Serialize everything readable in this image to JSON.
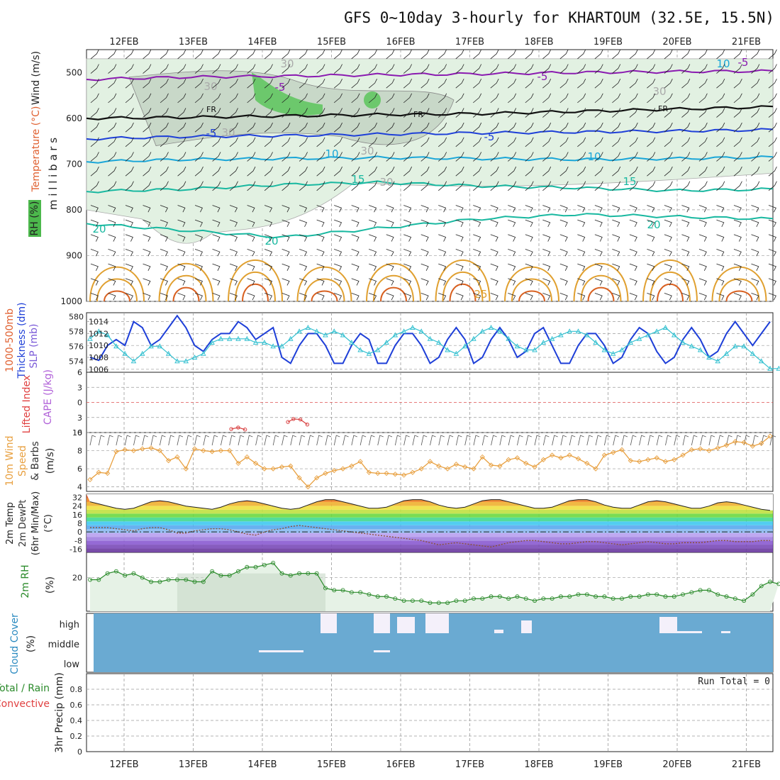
{
  "title": "GFS 0~10day 3-hourly for KHARTOUM (32.5E, 15.5N)",
  "dates": [
    "12FEB",
    "13FEB",
    "14FEB",
    "15FEB",
    "16FEB",
    "17FEB",
    "18FEB",
    "19FEB",
    "20FEB",
    "21FEB"
  ],
  "colors": {
    "grid": "#9a9a9a",
    "temp_blue": "#1e3fd8",
    "temp_cyan": "#1aa6d8",
    "temp_teal": "#18b8a0",
    "temp_orange": "#e0a030",
    "temp_purple": "#8a1ab0",
    "rh_green": "#6cc86c",
    "slp_blue": "#1e3fd8",
    "thick_cyan": "#33c0d0",
    "wind_orange": "#e8a040",
    "rh_dark": "#2a8a2a",
    "cloud": "#6aaad2",
    "cape_red": "#d84040"
  },
  "chart_data": [
    {
      "type": "heatmap",
      "panel": "upper_air",
      "ylabels": [
        "Wind (m/s)",
        "Temperature (°C)",
        "RH (%)",
        "m i l l i b a r s"
      ],
      "yticks": [
        500,
        600,
        700,
        800,
        900,
        1000
      ],
      "ylim": [
        1000,
        450
      ],
      "contour_labels": [
        "-5",
        "-5",
        "-5",
        "FR",
        "FR",
        "FR",
        "-5",
        "-5",
        "10",
        "10",
        "15",
        "15",
        "20",
        "20",
        "20",
        "25",
        "30",
        "30",
        "30",
        "30",
        "30",
        "30",
        "10"
      ],
      "isotherms": [
        {
          "name": "-5 upper",
          "level": [
            515,
            510,
            508,
            505,
            503,
            500,
            498,
            497
          ]
        },
        {
          "name": "FR",
          "level": [
            600,
            598,
            595,
            592,
            590,
            585,
            580,
            575
          ]
        },
        {
          "name": "-5 mid",
          "level": [
            645,
            640,
            638,
            635,
            632,
            630,
            628,
            625
          ]
        },
        {
          "name": "10",
          "level": [
            695,
            690,
            688,
            686,
            688,
            690,
            688,
            685
          ]
        },
        {
          "name": "15",
          "level": [
            760,
            755,
            745,
            740,
            748,
            752,
            758,
            755
          ]
        },
        {
          "name": "20",
          "level": [
            830,
            845,
            860,
            840,
            820,
            810,
            815,
            820
          ]
        }
      ]
    },
    {
      "type": "line",
      "panel": "thickness_slp",
      "ylabels_left": [
        "1000-500mb",
        "Thickness (dm)"
      ],
      "ylabel_right": "SLP (mb)",
      "yticks_left": [
        574,
        576,
        578,
        580
      ],
      "yticks_right": [
        1006,
        1008,
        1010,
        1012,
        1014
      ],
      "series": [
        {
          "name": "SLP",
          "axis": "right",
          "values": [
            1008,
            1007.5,
            1010,
            1011,
            1010,
            1014,
            1013,
            1010,
            1011,
            1013,
            1015,
            1013,
            1010,
            1009,
            1011,
            1012,
            1012,
            1014,
            1013,
            1011,
            1012,
            1013,
            1008,
            1007,
            1010,
            1012,
            1012,
            1010,
            1007,
            1007,
            1010,
            1012,
            1011,
            1007,
            1007,
            1010,
            1012,
            1012,
            1010,
            1007,
            1008,
            1011,
            1013,
            1011,
            1007,
            1008,
            1011,
            1013,
            1011,
            1008,
            1009,
            1012,
            1013,
            1010,
            1007,
            1007,
            1010,
            1012,
            1012,
            1010,
            1007,
            1008,
            1011,
            1013,
            1012,
            1009,
            1007,
            1008,
            1011,
            1013,
            1011,
            1008,
            1009,
            1012,
            1014,
            1012,
            1010,
            1012,
            1014
          ]
        },
        {
          "name": "1000-500mb Thickness",
          "axis": "left",
          "values": [
            577,
            578,
            577.5,
            576,
            575,
            574,
            575,
            576,
            576,
            575,
            574,
            574,
            574.5,
            575,
            576.5,
            577,
            577,
            577,
            577,
            576.5,
            576.5,
            576,
            576,
            577,
            578,
            578.5,
            578,
            577.5,
            578,
            577.5,
            576.5,
            575.5,
            575,
            575.5,
            576.5,
            577.5,
            578,
            578.5,
            578,
            577,
            576.5,
            575.5,
            575,
            576,
            577,
            578,
            578.5,
            578,
            577,
            576,
            575.5,
            575.5,
            576.5,
            577,
            577.5,
            578,
            578,
            577.5,
            576.5,
            575.5,
            575,
            575.5,
            576.5,
            577,
            577.5,
            578,
            578.5,
            577.5,
            576.5,
            576,
            575.5,
            574.5,
            574,
            575,
            576,
            576,
            575,
            574,
            573,
            573
          ]
        }
      ]
    },
    {
      "type": "line",
      "panel": "stability",
      "ylabels": [
        "Lifted Index",
        "CAPE (J/kg)"
      ],
      "yticks": [
        -6,
        -3,
        0,
        3,
        6
      ],
      "ylim": [
        -6,
        6
      ],
      "reference_line": 0,
      "series": [
        {
          "name": "Lifted Index",
          "segments": [
            [
              [
                13.55,
                5.3
              ],
              [
                13.65,
                5.0
              ],
              [
                13.75,
                5.4
              ]
            ],
            [
              [
                14.37,
                3.9
              ],
              [
                14.45,
                3.3
              ],
              [
                14.55,
                3.4
              ],
              [
                14.65,
                4.4
              ]
            ]
          ]
        }
      ]
    },
    {
      "type": "line",
      "panel": "wind10m",
      "ylabels": [
        "10m Wind",
        "Speed",
        "& Barbs",
        "(m/s)"
      ],
      "yticks": [
        4,
        6,
        8,
        10
      ],
      "ylim": [
        3.5,
        10
      ],
      "series": [
        {
          "name": "10m Wind Speed",
          "values": [
            4.8,
            5.6,
            5.5,
            7.9,
            8.1,
            8.0,
            8.2,
            8.3,
            8.0,
            6.9,
            7.3,
            6.0,
            8.2,
            8.0,
            7.9,
            8.0,
            8.0,
            6.6,
            7.3,
            6.6,
            6.0,
            6.0,
            6.2,
            6.3,
            5.0,
            4.0,
            5.0,
            5.5,
            5.8,
            6.0,
            6.3,
            6.8,
            5.6,
            5.5,
            5.5,
            5.4,
            5.3,
            5.6,
            6.0,
            6.8,
            6.3,
            6.0,
            6.5,
            6.2,
            6.0,
            7.3,
            6.4,
            6.3,
            7.0,
            7.2,
            6.6,
            6.2,
            7.0,
            7.5,
            7.2,
            7.5,
            7.1,
            6.6,
            6.0,
            7.5,
            7.8,
            8.1,
            6.9,
            6.8,
            7.0,
            7.2,
            6.8,
            7.0,
            7.5,
            8.1,
            8.2,
            8.0,
            8.3,
            8.6,
            9.0,
            8.9,
            8.5,
            8.8,
            9.6
          ]
        }
      ]
    },
    {
      "type": "area",
      "panel": "temp2m",
      "ylabels": [
        "2m Temp",
        "2m DewPt",
        "(6hr Min/Max)",
        "(°C)"
      ],
      "yticks": [
        32,
        24,
        16,
        8,
        0,
        -8,
        -16
      ],
      "ylim": [
        -19,
        35
      ],
      "series": [
        {
          "name": "2m Temp",
          "values": [
            28,
            26,
            24,
            22,
            21,
            22,
            25,
            28,
            29,
            28,
            26,
            24,
            23,
            22,
            21,
            23,
            26,
            28,
            29,
            28,
            26,
            24,
            22,
            21,
            22,
            25,
            28,
            30,
            30,
            28,
            26,
            24,
            22,
            22,
            23,
            26,
            29,
            30,
            30,
            28,
            25,
            23,
            22,
            23,
            26,
            29,
            30,
            30,
            28,
            26,
            24,
            22,
            22,
            23,
            26,
            29,
            30,
            30,
            28,
            25,
            23,
            22,
            22,
            25,
            28,
            29,
            28,
            26,
            24,
            22,
            22,
            24,
            27,
            28,
            27,
            25,
            23,
            21,
            20
          ]
        },
        {
          "name": "2m DewPt",
          "values": [
            4,
            4,
            4,
            3,
            2,
            1,
            3,
            4,
            4,
            2,
            -1,
            -1,
            1,
            2,
            3,
            3,
            2,
            0,
            -2,
            -3,
            0,
            2,
            3,
            5,
            6,
            5,
            4,
            3,
            2,
            1,
            0,
            -1,
            -2,
            -3,
            -4,
            -5,
            -6,
            -7,
            -8,
            -10,
            -12,
            -11,
            -10,
            -11,
            -12,
            -13,
            -14,
            -12,
            -10,
            -9,
            -8,
            -8,
            -9,
            -10,
            -11,
            -11,
            -10,
            -9,
            -9,
            -10,
            -11,
            -12,
            -11,
            -10,
            -9,
            -10,
            -11,
            -11,
            -10,
            -10,
            -10,
            -9,
            -8,
            -8,
            -9,
            -9,
            -9,
            -8,
            -8
          ]
        }
      ]
    },
    {
      "type": "area",
      "panel": "rh2m",
      "ylabels": [
        "2m RH",
        "(%)"
      ],
      "yticks": [
        20
      ],
      "ylim": [
        4,
        32
      ],
      "series": [
        {
          "name": "2m RH",
          "values": [
            19,
            19,
            22,
            23,
            21,
            22,
            20,
            18,
            18,
            19,
            19,
            19,
            18,
            18,
            23,
            21,
            21,
            23,
            25,
            25,
            26,
            27,
            22,
            21,
            22,
            22,
            22,
            15,
            14,
            14,
            13,
            13,
            12,
            11,
            11,
            10,
            9,
            9,
            9,
            8,
            8,
            8,
            9,
            9,
            10,
            10,
            11,
            11,
            10,
            11,
            10,
            9,
            10,
            10,
            11,
            11,
            12,
            12,
            11,
            11,
            10,
            10,
            11,
            11,
            12,
            12,
            11,
            11,
            12,
            13,
            14,
            14,
            12,
            11,
            10,
            9,
            12,
            16,
            18,
            17
          ]
        }
      ]
    },
    {
      "type": "bar",
      "panel": "cloud",
      "ylabels": [
        "Cloud Cover",
        "(%)"
      ],
      "yticks": [
        "high",
        "middle",
        "low"
      ],
      "layers": [
        "high",
        "middle",
        "low"
      ]
    },
    {
      "type": "bar",
      "panel": "precip",
      "ylabels": [
        "3hr Precip (mm)"
      ],
      "side_labels": [
        "Total / Rain",
        "Convective"
      ],
      "yticks": [
        0,
        0.2,
        0.4,
        0.6,
        0.8
      ],
      "ylim": [
        0,
        1
      ],
      "annotation": "Run Total = 0",
      "values": []
    }
  ]
}
